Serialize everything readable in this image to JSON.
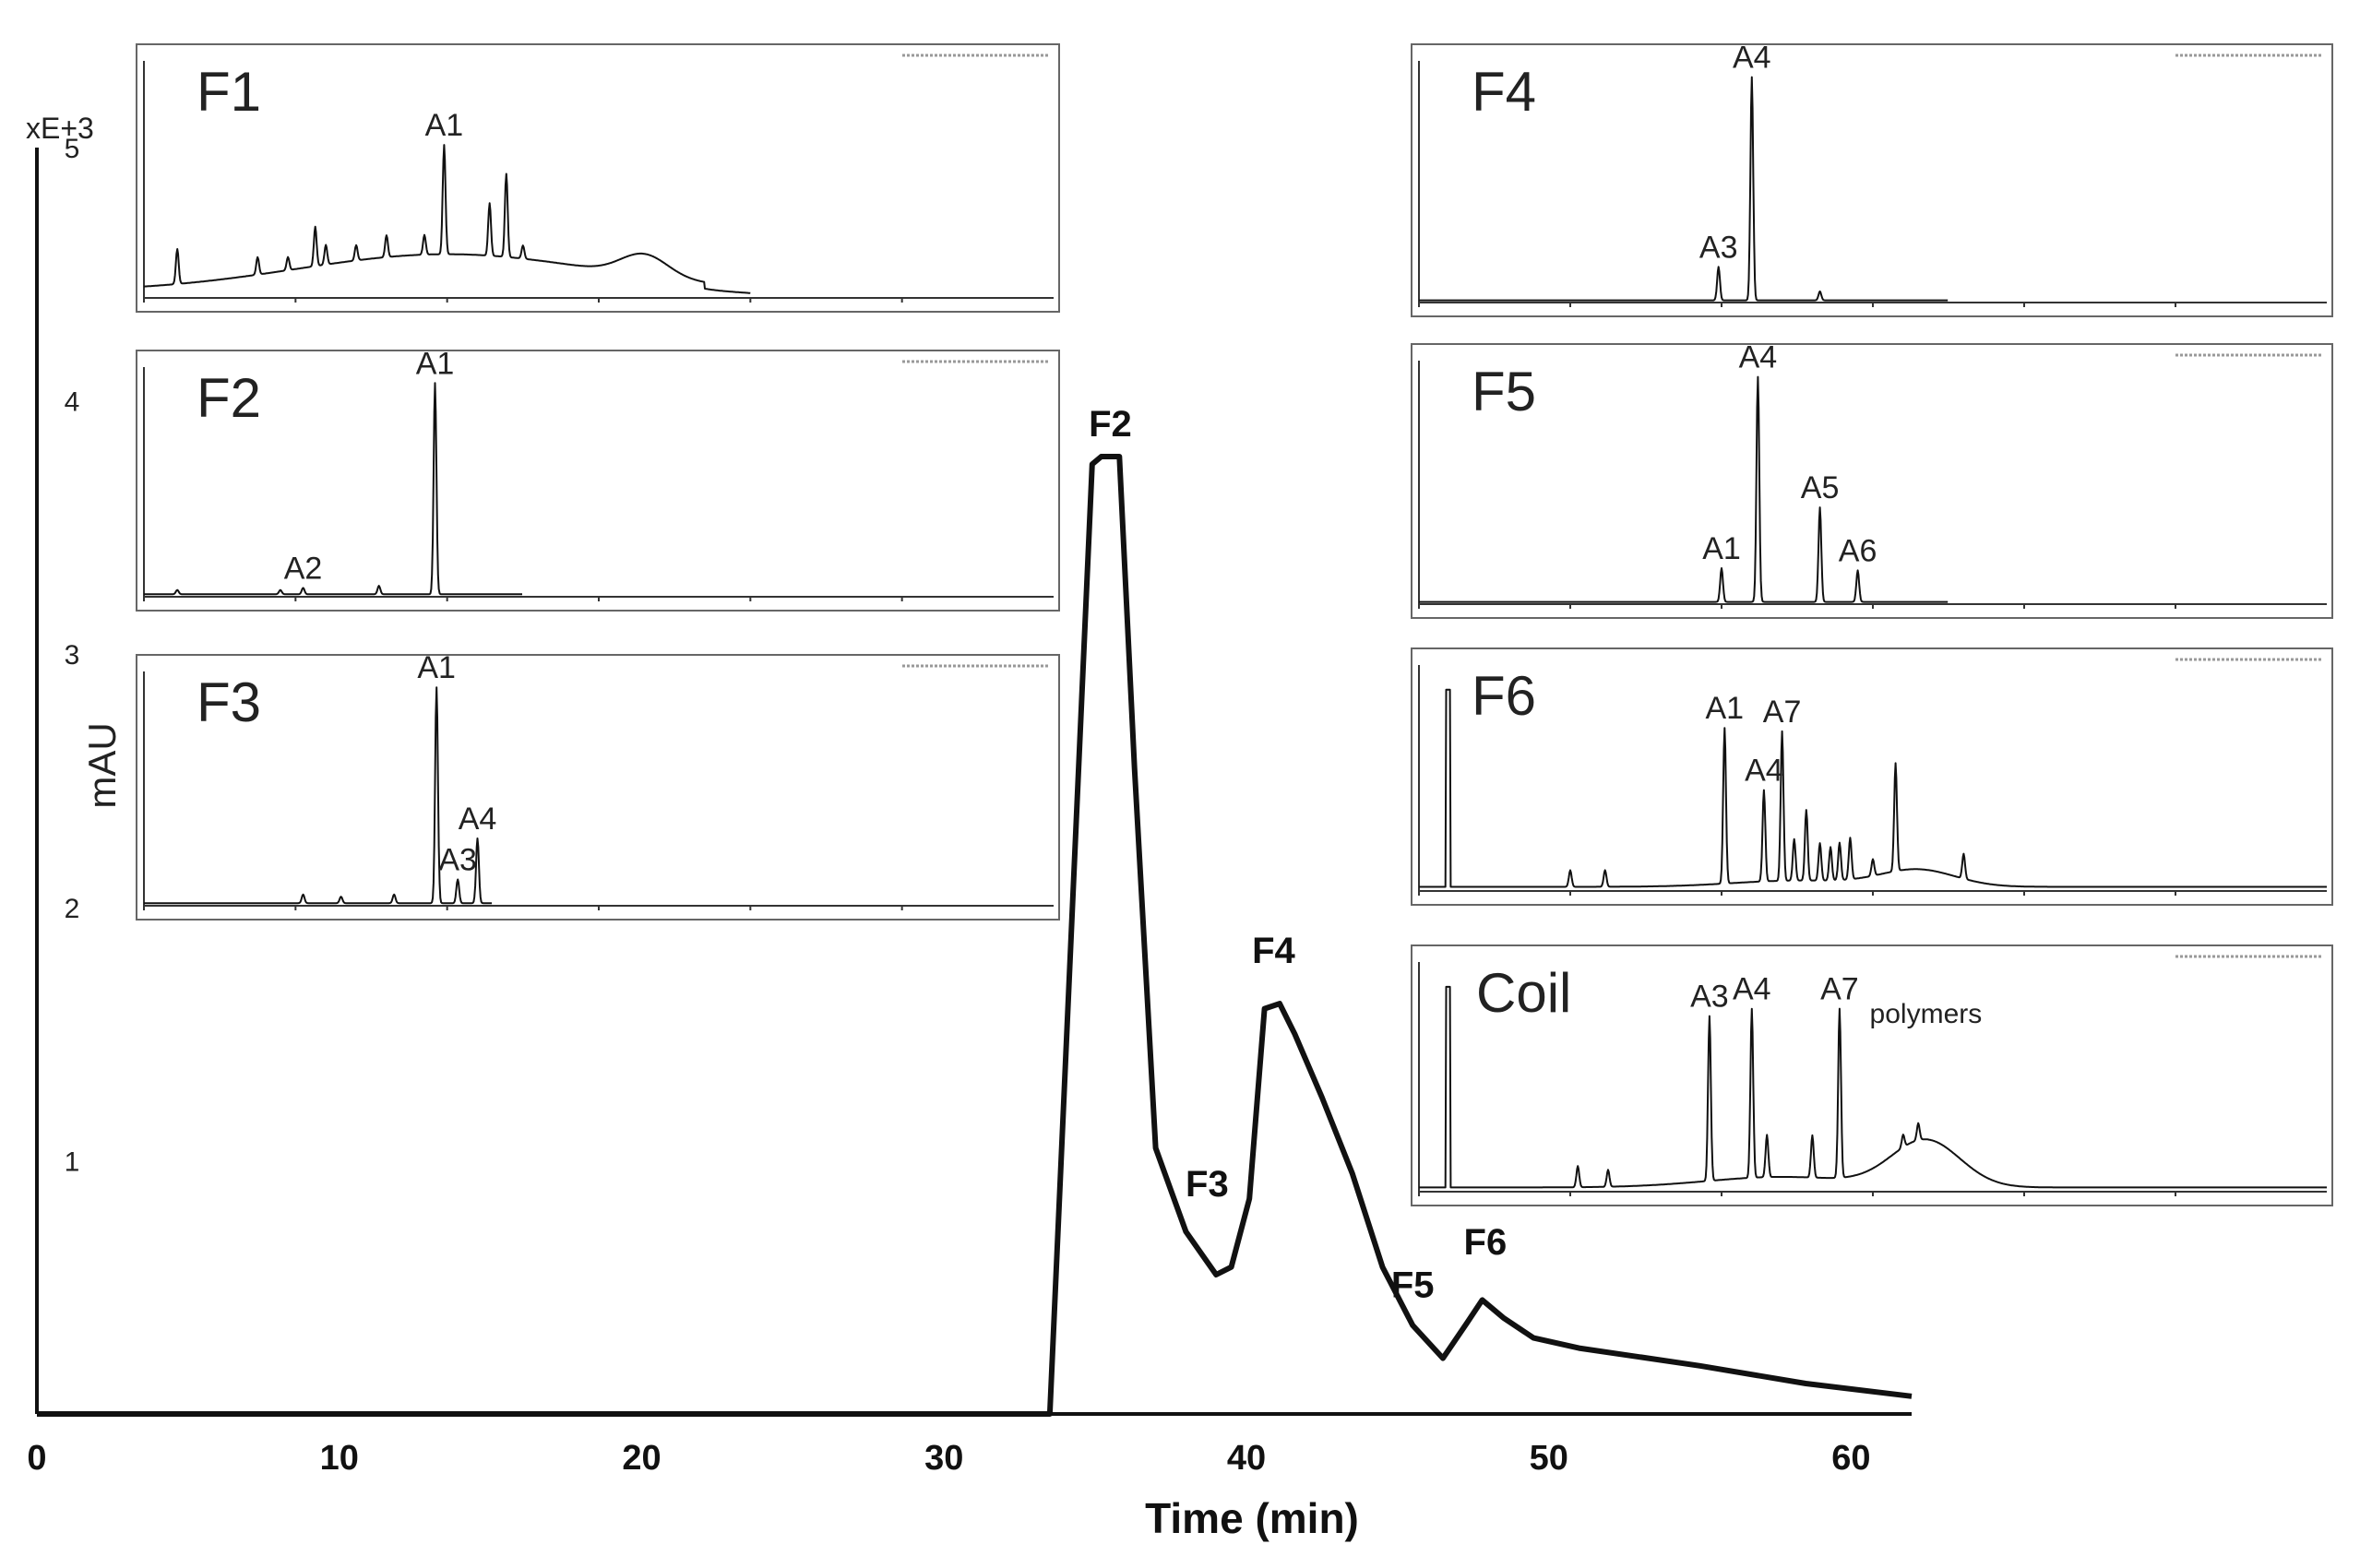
{
  "chart_data": {
    "type": "line",
    "main": {
      "xlabel": "Time (min)",
      "ylabel": "mAU",
      "yunit": "xE+3",
      "xlim": [
        0,
        62
      ],
      "ylim": [
        0,
        5
      ],
      "xticks": [
        0,
        10,
        20,
        30,
        40,
        50,
        60
      ],
      "yticks": [
        1,
        2,
        3,
        4,
        5
      ],
      "series": [
        {
          "name": "trace",
          "points": [
            [
              0,
              0
            ],
            [
              33.5,
              0
            ],
            [
              34.9,
              3.75
            ],
            [
              35.2,
              3.78
            ],
            [
              35.8,
              3.78
            ],
            [
              36.3,
              2.55
            ],
            [
              37,
              1.05
            ],
            [
              38,
              0.72
            ],
            [
              39,
              0.55
            ],
            [
              39.5,
              0.58
            ],
            [
              40.1,
              0.85
            ],
            [
              40.6,
              1.6
            ],
            [
              41.1,
              1.62
            ],
            [
              41.6,
              1.5
            ],
            [
              42.5,
              1.25
            ],
            [
              43.5,
              0.95
            ],
            [
              44.5,
              0.58
            ],
            [
              45.5,
              0.35
            ],
            [
              46.5,
              0.22
            ],
            [
              47.3,
              0.36
            ],
            [
              47.8,
              0.45
            ],
            [
              48.5,
              0.38
            ],
            [
              49.5,
              0.3
            ],
            [
              51,
              0.26
            ],
            [
              55,
              0.19
            ],
            [
              58.5,
              0.12
            ],
            [
              62,
              0.07
            ]
          ]
        }
      ],
      "fraction_labels": [
        {
          "label": "F2",
          "x": 35.5,
          "y": 3.78
        },
        {
          "label": "F3",
          "x": 38.7,
          "y": 0.78
        },
        {
          "label": "F4",
          "x": 40.9,
          "y": 1.7
        },
        {
          "label": "F5",
          "x": 45.5,
          "y": 0.38
        },
        {
          "label": "F6",
          "x": 47.9,
          "y": 0.55
        }
      ]
    },
    "insets": [
      {
        "label": "F1",
        "peaks": [
          {
            "label": "A1",
            "t": 19.8,
            "h": 50
          },
          {
            "label": "",
            "t": 22.8,
            "h": 24
          },
          {
            "label": "",
            "t": 23.9,
            "h": 38
          },
          {
            "label": "",
            "t": 11.3,
            "h": 18
          },
          {
            "label": "",
            "t": 2.2,
            "h": 16
          }
        ]
      },
      {
        "label": "F2",
        "peaks": [
          {
            "label": "A1",
            "t": 19.2,
            "h": 100
          },
          {
            "label": "A2",
            "t": 10.5,
            "h": 3
          }
        ]
      },
      {
        "label": "F3",
        "peaks": [
          {
            "label": "A1",
            "t": 19.3,
            "h": 100
          },
          {
            "label": "A3",
            "t": 20.7,
            "h": 11
          },
          {
            "label": "A4",
            "t": 22,
            "h": 30
          }
        ]
      },
      {
        "label": "F4",
        "peaks": [
          {
            "label": "A3",
            "t": 19.8,
            "h": 15
          },
          {
            "label": "A4",
            "t": 22,
            "h": 100
          }
        ]
      },
      {
        "label": "F5",
        "peaks": [
          {
            "label": "A1",
            "t": 20,
            "h": 15
          },
          {
            "label": "A4",
            "t": 22.4,
            "h": 100
          },
          {
            "label": "A5",
            "t": 26.5,
            "h": 42
          },
          {
            "label": "A6",
            "t": 29,
            "h": 14
          }
        ]
      },
      {
        "label": "F6",
        "peaks": [
          {
            "label": "A1",
            "t": 20.2,
            "h": 75
          },
          {
            "label": "A4",
            "t": 22.8,
            "h": 44
          },
          {
            "label": "A7",
            "t": 24,
            "h": 72
          }
        ]
      },
      {
        "label": "Coil",
        "peaks": [
          {
            "label": "A3",
            "t": 19.2,
            "h": 78
          },
          {
            "label": "A4",
            "t": 22,
            "h": 80
          },
          {
            "label": "A7",
            "t": 27.8,
            "h": 80
          }
        ],
        "annotation": "polymers"
      }
    ]
  }
}
